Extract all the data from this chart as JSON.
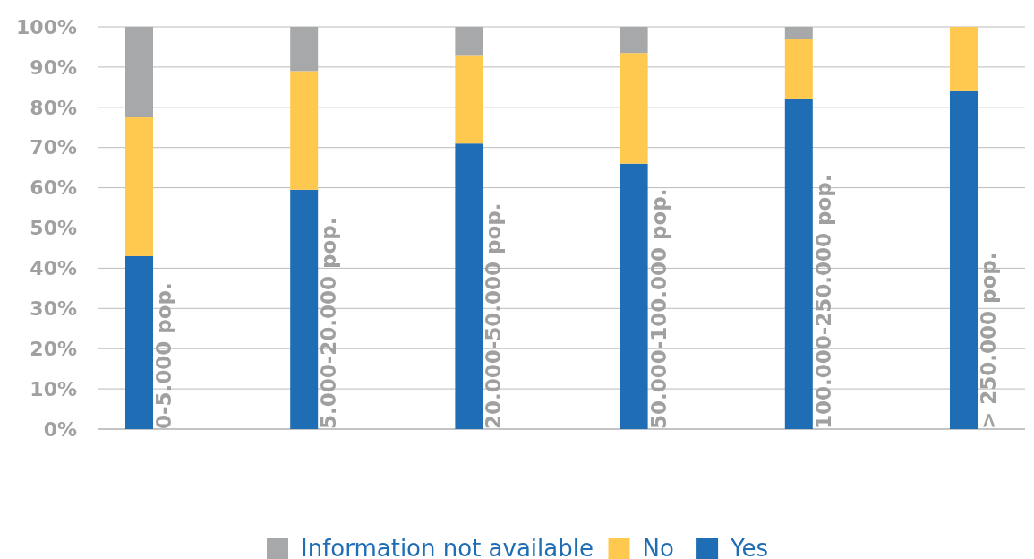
{
  "chart_data": {
    "type": "bar",
    "stacked": true,
    "categories": [
      "0-5.000 pop.",
      "5.000-20.000 pop.",
      "20.000-50.000 pop.",
      "50.000-100.000 pop.",
      "100.000-250.000 pop.",
      "> 250.000 pop."
    ],
    "series": [
      {
        "name": "Yes",
        "color": "#1f6db5",
        "values": [
          43,
          59.5,
          71,
          66,
          82,
          84
        ]
      },
      {
        "name": "No",
        "color": "#ffc94f",
        "values": [
          34.5,
          29.5,
          22,
          27.5,
          15,
          16
        ]
      },
      {
        "name": "Information not available",
        "color": "#a7a8aa",
        "values": [
          22.5,
          11,
          7,
          6.5,
          3,
          0
        ]
      }
    ],
    "ylim": [
      0,
      100
    ],
    "yticks": [
      {
        "value": 0,
        "label": "0%"
      },
      {
        "value": 10,
        "label": "10%"
      },
      {
        "value": 20,
        "label": "20%"
      },
      {
        "value": 30,
        "label": "30%"
      },
      {
        "value": 40,
        "label": "40%"
      },
      {
        "value": 50,
        "label": "50%"
      },
      {
        "value": 60,
        "label": "60%"
      },
      {
        "value": 70,
        "label": "70%"
      },
      {
        "value": 80,
        "label": "80%"
      },
      {
        "value": 90,
        "label": "90%"
      },
      {
        "value": 100,
        "label": "100%"
      }
    ],
    "grid": "y",
    "legend": "bottom"
  }
}
